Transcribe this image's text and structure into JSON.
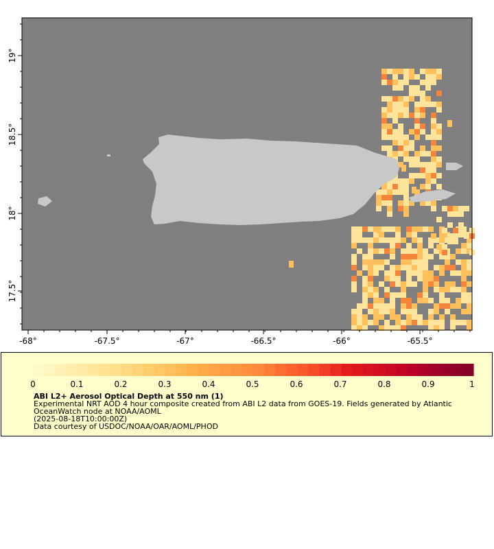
{
  "map": {
    "x_ticks": [
      "-68°",
      "-67.5°",
      "-67°",
      "-66.5°",
      "-66°",
      "-65.5°"
    ],
    "y_ticks": [
      "19°",
      "18.5°",
      "18°",
      "17.5°"
    ],
    "colors": {
      "ocean": "#7f7f7f",
      "land": "#c8c8c8",
      "aod_low": "#fee39a",
      "aod_mid": "#fdc05c",
      "aod_high": "#f4843c"
    }
  },
  "colorbar": {
    "ticks": [
      "0",
      "0.1",
      "0.2",
      "0.3",
      "0.4",
      "0.5",
      "0.6",
      "0.7",
      "0.8",
      "0.9",
      "1"
    ],
    "colormap": "YlOrRd",
    "min": 0,
    "max": 1
  },
  "caption": {
    "title": "ABI L2+ Aerosol Optical Depth at 550 nm (1)",
    "line1": "Experimental NRT AOD 4 hour composite created from ABI L2 data from GOES-19. Fields generated by Atlantic",
    "line2": "OceanWatch node at NOAA/AOML",
    "line3": "(2025-08-18T10:00:00Z)",
    "line4": "Data courtesy of USDOC/NOAA/OAR/AOML/PHOD"
  }
}
